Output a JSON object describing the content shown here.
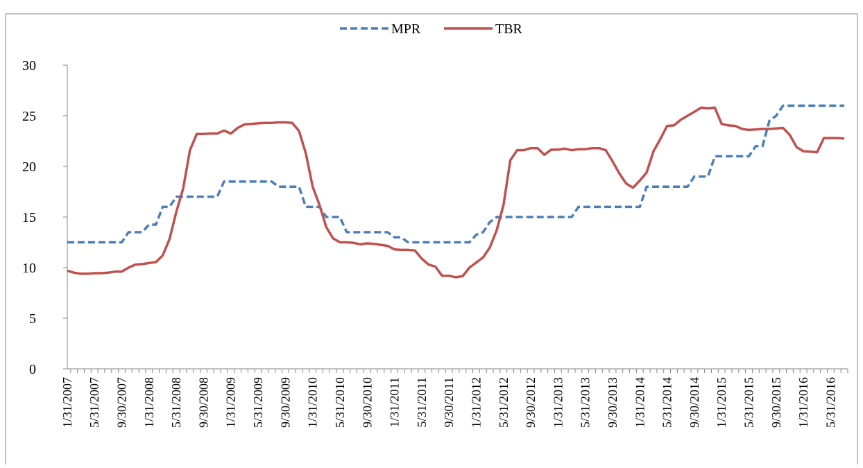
{
  "chart_data": {
    "type": "line",
    "categories": [
      "1/31/2007",
      null,
      null,
      null,
      "5/31/2007",
      null,
      null,
      null,
      "9/30/2007",
      null,
      null,
      null,
      "1/31/2008",
      null,
      null,
      null,
      "5/31/2008",
      null,
      null,
      null,
      "9/30/2008",
      null,
      null,
      null,
      "1/31/2009",
      null,
      null,
      null,
      "5/31/2009",
      null,
      null,
      null,
      "9/30/2009",
      null,
      null,
      null,
      "1/31/2010",
      null,
      null,
      null,
      "5/31/2010",
      null,
      null,
      null,
      "9/30/2010",
      null,
      null,
      null,
      "1/31/2011",
      null,
      null,
      null,
      "5/31/2011",
      null,
      null,
      null,
      "9/30/2011",
      null,
      null,
      null,
      "1/31/2012",
      null,
      null,
      null,
      "5/31/2012",
      null,
      null,
      null,
      "9/30/2012",
      null,
      null,
      null,
      "1/31/2013",
      null,
      null,
      null,
      "5/31/2013",
      null,
      null,
      null,
      "9/30/2013",
      null,
      null,
      null,
      "1/31/2014",
      null,
      null,
      null,
      "5/31/2014",
      null,
      null,
      null,
      "9/30/2014",
      null,
      null,
      null,
      "1/31/2015",
      null,
      null,
      null,
      "5/31/2015",
      null,
      null,
      null,
      "9/30/2015",
      null,
      null,
      null,
      "1/31/2016",
      null,
      null,
      null,
      "5/31/2016",
      null,
      null
    ],
    "series": [
      {
        "name": "MPR",
        "color": "#4a7ebb",
        "dashed": true,
        "values": [
          12.5,
          12.5,
          12.5,
          12.5,
          12.5,
          12.5,
          12.5,
          12.5,
          12.5,
          13.5,
          13.5,
          13.5,
          14.25,
          14.25,
          16,
          16,
          17,
          17,
          17,
          17,
          17,
          17,
          17,
          18.5,
          18.5,
          18.5,
          18.5,
          18.5,
          18.5,
          18.5,
          18.5,
          18,
          18,
          18,
          18,
          16,
          16,
          16,
          15,
          15,
          15,
          13.5,
          13.5,
          13.5,
          13.5,
          13.5,
          13.5,
          13.5,
          13,
          13,
          12.5,
          12.5,
          12.5,
          12.5,
          12.5,
          12.5,
          12.5,
          12.5,
          12.5,
          12.5,
          13.25,
          13.5,
          14.5,
          15,
          15,
          15,
          15,
          15,
          15,
          15,
          15,
          15,
          15,
          15,
          15,
          16,
          16,
          16,
          16,
          16,
          16,
          16,
          16,
          16,
          16,
          18,
          18,
          18,
          18,
          18,
          18,
          18,
          19,
          19,
          19,
          21,
          21,
          21,
          21,
          21,
          21,
          22,
          22,
          24.5,
          25,
          26,
          26,
          26,
          26,
          26,
          26,
          26,
          26,
          26,
          26
        ]
      },
      {
        "name": "TBR",
        "color": "#c0504d",
        "dashed": false,
        "values": [
          9.7,
          9.5,
          9.4,
          9.4,
          9.45,
          9.45,
          9.5,
          9.6,
          9.6,
          10.0,
          10.3,
          10.35,
          10.45,
          10.55,
          11.2,
          12.8,
          15.5,
          17.8,
          21.6,
          23.2,
          23.2,
          23.25,
          23.25,
          23.55,
          23.25,
          23.8,
          24.15,
          24.2,
          24.25,
          24.3,
          24.3,
          24.35,
          24.35,
          24.3,
          23.5,
          21.3,
          18.0,
          16.2,
          14.0,
          12.9,
          12.5,
          12.5,
          12.45,
          12.3,
          12.4,
          12.35,
          12.25,
          12.15,
          11.8,
          11.75,
          11.75,
          11.7,
          10.9,
          10.3,
          10.1,
          9.2,
          9.2,
          9.05,
          9.15,
          10.0,
          10.5,
          11.0,
          12.0,
          13.7,
          16.2,
          20.6,
          21.6,
          21.6,
          21.8,
          21.8,
          21.15,
          21.65,
          21.65,
          21.75,
          21.6,
          21.7,
          21.7,
          21.8,
          21.8,
          21.6,
          20.5,
          19.3,
          18.3,
          17.9,
          18.6,
          19.4,
          21.5,
          22.7,
          24.0,
          24.05,
          24.6,
          25.0,
          25.4,
          25.8,
          25.75,
          25.8,
          24.2,
          24.05,
          24.0,
          23.7,
          23.6,
          23.65,
          23.7,
          23.7,
          23.75,
          23.8,
          23.1,
          21.9,
          21.5,
          21.45,
          21.4,
          22.8,
          22.8,
          22.8,
          22.75
        ]
      }
    ],
    "ylim": [
      0,
      30
    ],
    "yticks": [
      0,
      5,
      10,
      15,
      20,
      25,
      30
    ],
    "grid": false,
    "legend": "top"
  }
}
